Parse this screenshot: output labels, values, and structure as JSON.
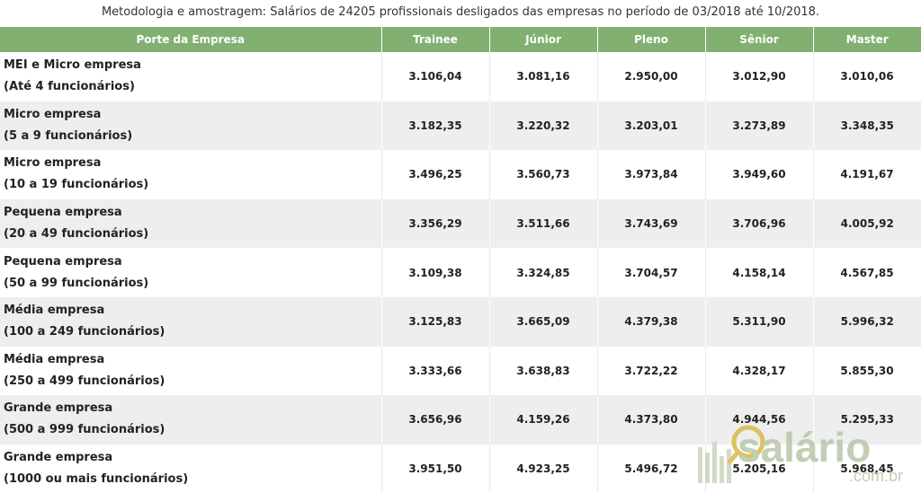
{
  "caption": "Metodologia e amostragem: Salários de 24205 profissionais desligados das empresas no período de 03/2018 até 10/2018.",
  "table": {
    "headers": [
      "Porte da Empresa",
      "Trainee",
      "Júnior",
      "Pleno",
      "Sênior",
      "Master"
    ],
    "rows": [
      {
        "porte": "MEI e Micro empresa",
        "funcionarios": "(Até 4 funcionários)",
        "values": [
          "3.106,04",
          "3.081,16",
          "2.950,00",
          "3.012,90",
          "3.010,06"
        ]
      },
      {
        "porte": "Micro empresa",
        "funcionarios": "(5 a 9 funcionários)",
        "values": [
          "3.182,35",
          "3.220,32",
          "3.203,01",
          "3.273,89",
          "3.348,35"
        ]
      },
      {
        "porte": "Micro empresa",
        "funcionarios": "(10 a 19 funcionários)",
        "values": [
          "3.496,25",
          "3.560,73",
          "3.973,84",
          "3.949,60",
          "4.191,67"
        ]
      },
      {
        "porte": "Pequena empresa",
        "funcionarios": "(20 a 49 funcionários)",
        "values": [
          "3.356,29",
          "3.511,66",
          "3.743,69",
          "3.706,96",
          "4.005,92"
        ]
      },
      {
        "porte": "Pequena empresa",
        "funcionarios": "(50 a 99 funcionários)",
        "values": [
          "3.109,38",
          "3.324,85",
          "3.704,57",
          "4.158,14",
          "4.567,85"
        ]
      },
      {
        "porte": "Média empresa",
        "funcionarios": "(100 a 249 funcionários)",
        "values": [
          "3.125,83",
          "3.665,09",
          "4.379,38",
          "5.311,90",
          "5.996,32"
        ]
      },
      {
        "porte": "Média empresa",
        "funcionarios": "(250 a 499 funcionários)",
        "values": [
          "3.333,66",
          "3.638,83",
          "3.722,22",
          "4.328,17",
          "5.855,30"
        ]
      },
      {
        "porte": "Grande empresa",
        "funcionarios": "(500 a 999 funcionários)",
        "values": [
          "3.656,96",
          "4.159,26",
          "4.373,80",
          "4.944,56",
          "5.295,33"
        ]
      },
      {
        "porte": "Grande empresa",
        "funcionarios": "(1000 ou mais funcionários)",
        "values": [
          "3.951,50",
          "4.923,25",
          "5.496,72",
          "5.205,16",
          "5.968,45"
        ]
      }
    ]
  },
  "watermark": {
    "brand": "salário",
    "domain": ".com.br",
    "color": "#b7c7a8"
  },
  "colors": {
    "header_bg": "#81b070",
    "row_alt": "#eeeeee"
  }
}
